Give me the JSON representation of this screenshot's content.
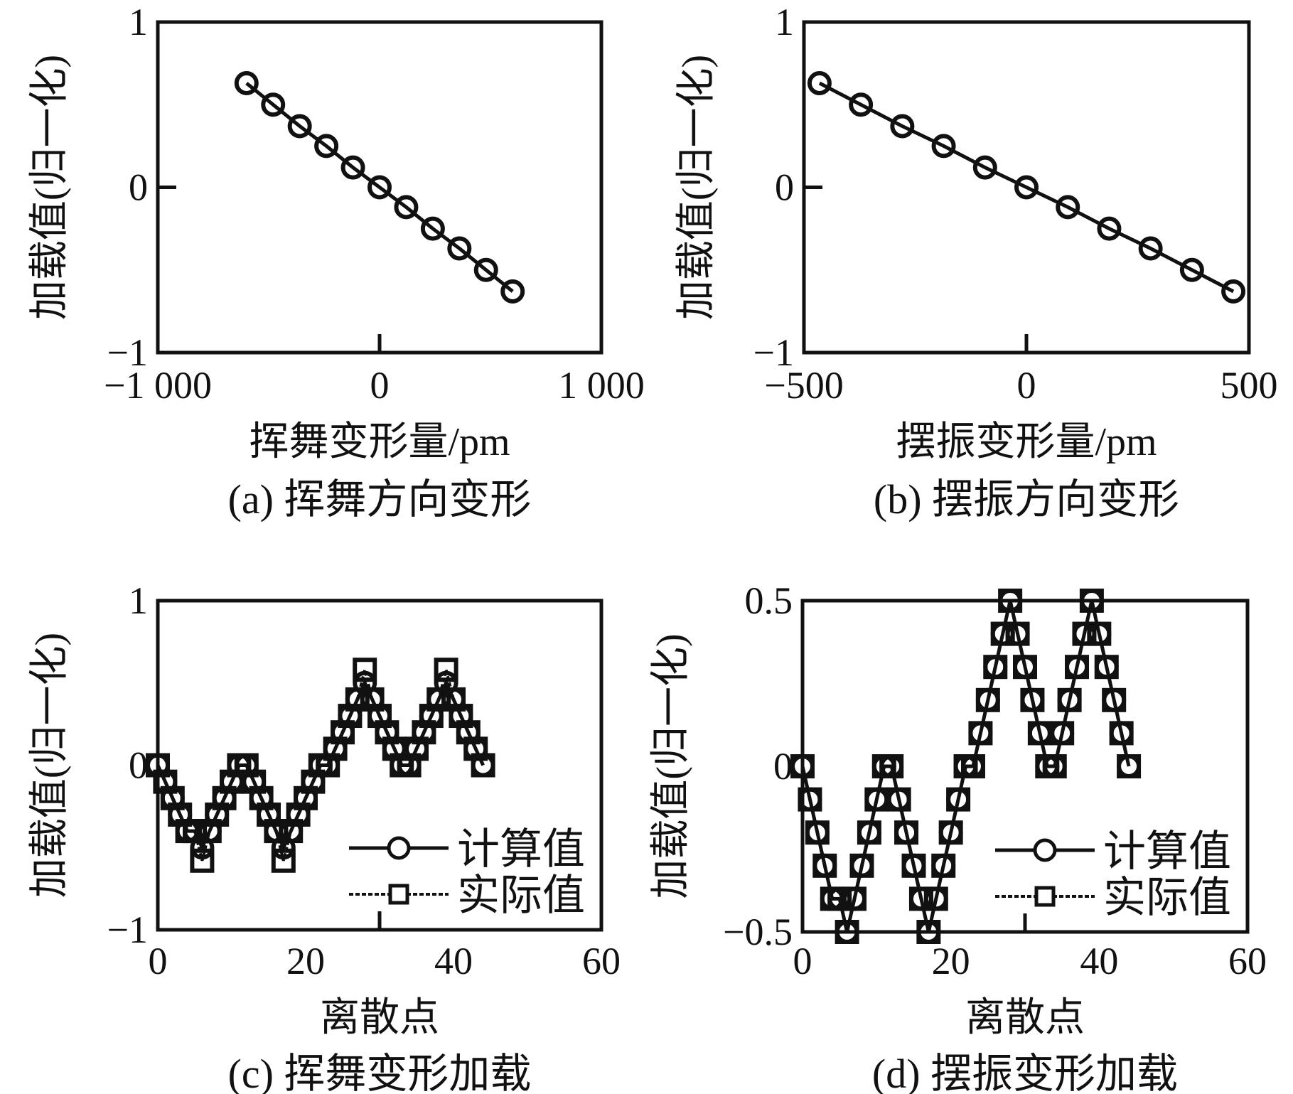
{
  "chart_data": [
    {
      "type": "line",
      "caption": "(a) 挥舞方向变形",
      "xlabel": "挥舞变形量/pm",
      "ylabel": "加载值(归一化)",
      "xlim": [
        -1000,
        1000
      ],
      "ylim": [
        -1,
        1
      ],
      "xticks": [
        "−1 000",
        "0",
        "1 000"
      ],
      "yticks": [
        "1",
        "0",
        "−1"
      ],
      "series": [
        {
          "name": "",
          "marker": "circle",
          "x": [
            -600,
            -480,
            -360,
            -240,
            -120,
            0,
            120,
            240,
            360,
            480,
            600
          ],
          "y": [
            0.63,
            0.5,
            0.37,
            0.25,
            0.12,
            0,
            -0.12,
            -0.25,
            -0.37,
            -0.5,
            -0.63
          ]
        }
      ]
    },
    {
      "type": "line",
      "caption": "(b) 摆振方向变形",
      "xlabel": "摆振变形量/pm",
      "ylabel": "加载值(归一化)",
      "xlim": [
        -500,
        500
      ],
      "ylim": [
        -1,
        1
      ],
      "xticks": [
        "−500",
        "0",
        "500"
      ],
      "yticks": [
        "1",
        "0",
        "−1"
      ],
      "series": [
        {
          "name": "",
          "marker": "circle",
          "x": [
            -465,
            -372,
            -279,
            -186,
            -93,
            0,
            93,
            186,
            279,
            372,
            465
          ],
          "y": [
            0.63,
            0.5,
            0.37,
            0.25,
            0.12,
            0,
            -0.12,
            -0.25,
            -0.37,
            -0.5,
            -0.63
          ]
        }
      ]
    },
    {
      "type": "line",
      "caption": "(c) 挥舞变形加载",
      "xlabel": "离散点",
      "ylabel": "加载值(归一化)",
      "xlim": [
        0,
        60
      ],
      "ylim": [
        -1,
        1
      ],
      "xticks": [
        "0",
        "20",
        "40",
        "60"
      ],
      "yticks": [
        "1",
        "0",
        "−1"
      ],
      "legend_position": "bottom-right",
      "series": [
        {
          "name": "计算值",
          "marker": "circle",
          "linestyle": "solid",
          "x": [
            0,
            1,
            2,
            3,
            4,
            5,
            6,
            7,
            8,
            9,
            10,
            11,
            12,
            13,
            14,
            15,
            16,
            17,
            18,
            19,
            20,
            21,
            22,
            23,
            24,
            25,
            26,
            27,
            28,
            29,
            30,
            31,
            32,
            33,
            34,
            35,
            36,
            37,
            38,
            39,
            40,
            41,
            42,
            43,
            44
          ],
          "y": [
            0,
            -0.1,
            -0.2,
            -0.3,
            -0.4,
            -0.4,
            -0.5,
            -0.4,
            -0.3,
            -0.2,
            -0.1,
            0,
            0,
            -0.1,
            -0.2,
            -0.3,
            -0.4,
            -0.5,
            -0.4,
            -0.3,
            -0.2,
            -0.1,
            0,
            0,
            0.1,
            0.2,
            0.3,
            0.4,
            0.5,
            0.4,
            0.3,
            0.2,
            0.1,
            0,
            0,
            0.1,
            0.2,
            0.3,
            0.4,
            0.5,
            0.4,
            0.3,
            0.2,
            0.1,
            0
          ]
        },
        {
          "name": "实际值",
          "marker": "square",
          "linestyle": "dotted",
          "x": [
            0,
            1,
            2,
            3,
            4,
            5,
            6,
            7,
            8,
            9,
            10,
            11,
            12,
            13,
            14,
            15,
            16,
            17,
            18,
            19,
            20,
            21,
            22,
            23,
            24,
            25,
            26,
            27,
            28,
            29,
            30,
            31,
            32,
            33,
            34,
            35,
            36,
            37,
            38,
            39,
            40,
            41,
            42,
            43,
            44
          ],
          "y": [
            0,
            -0.1,
            -0.2,
            -0.3,
            -0.4,
            -0.4,
            -0.58,
            -0.4,
            -0.3,
            -0.2,
            -0.1,
            0,
            0,
            -0.1,
            -0.2,
            -0.3,
            -0.4,
            -0.58,
            -0.4,
            -0.3,
            -0.2,
            -0.1,
            0,
            0,
            0.1,
            0.2,
            0.3,
            0.4,
            0.58,
            0.4,
            0.3,
            0.2,
            0.1,
            0,
            0,
            0.1,
            0.2,
            0.3,
            0.4,
            0.58,
            0.4,
            0.3,
            0.2,
            0.1,
            0
          ]
        }
      ]
    },
    {
      "type": "line",
      "caption": "(d) 摆振变形加载",
      "xlabel": "离散点",
      "ylabel": "加载值(归一化)",
      "xlim": [
        0,
        60
      ],
      "ylim": [
        -0.5,
        0.5
      ],
      "xticks": [
        "0",
        "20",
        "40",
        "60"
      ],
      "yticks": [
        "0.5",
        "0",
        "−0.5"
      ],
      "legend_position": "bottom-right",
      "series": [
        {
          "name": "计算值",
          "marker": "circle",
          "linestyle": "solid",
          "x": [
            0,
            1,
            2,
            3,
            4,
            5,
            6,
            7,
            8,
            9,
            10,
            11,
            12,
            13,
            14,
            15,
            16,
            17,
            18,
            19,
            20,
            21,
            22,
            23,
            24,
            25,
            26,
            27,
            28,
            29,
            30,
            31,
            32,
            33,
            34,
            35,
            36,
            37,
            38,
            39,
            40,
            41,
            42,
            43,
            44
          ],
          "y": [
            0,
            -0.1,
            -0.2,
            -0.3,
            -0.4,
            -0.4,
            -0.5,
            -0.4,
            -0.3,
            -0.2,
            -0.1,
            0,
            0,
            -0.1,
            -0.2,
            -0.3,
            -0.4,
            -0.5,
            -0.4,
            -0.3,
            -0.2,
            -0.1,
            0,
            0,
            0.1,
            0.2,
            0.3,
            0.4,
            0.5,
            0.4,
            0.3,
            0.2,
            0.1,
            0,
            0,
            0.1,
            0.2,
            0.3,
            0.4,
            0.5,
            0.4,
            0.3,
            0.2,
            0.1,
            0
          ]
        },
        {
          "name": "实际值",
          "marker": "square",
          "linestyle": "dotted",
          "x": [
            0,
            1,
            2,
            3,
            4,
            5,
            6,
            7,
            8,
            9,
            10,
            11,
            12,
            13,
            14,
            15,
            16,
            17,
            18,
            19,
            20,
            21,
            22,
            23,
            24,
            25,
            26,
            27,
            28,
            29,
            30,
            31,
            32,
            33,
            34,
            35,
            36,
            37,
            38,
            39,
            40,
            41,
            42,
            43,
            44
          ],
          "y": [
            0,
            -0.1,
            -0.2,
            -0.3,
            -0.4,
            -0.4,
            -0.5,
            -0.4,
            -0.3,
            -0.2,
            -0.1,
            0,
            0,
            -0.1,
            -0.2,
            -0.3,
            -0.4,
            -0.5,
            -0.4,
            -0.3,
            -0.2,
            -0.1,
            0,
            0,
            0.1,
            0.2,
            0.3,
            0.4,
            0.5,
            0.4,
            0.3,
            0.2,
            0.1,
            0,
            0,
            0.1,
            0.2,
            0.3,
            0.4,
            0.5,
            0.4,
            0.3,
            0.2,
            0.1,
            0
          ]
        }
      ]
    }
  ]
}
